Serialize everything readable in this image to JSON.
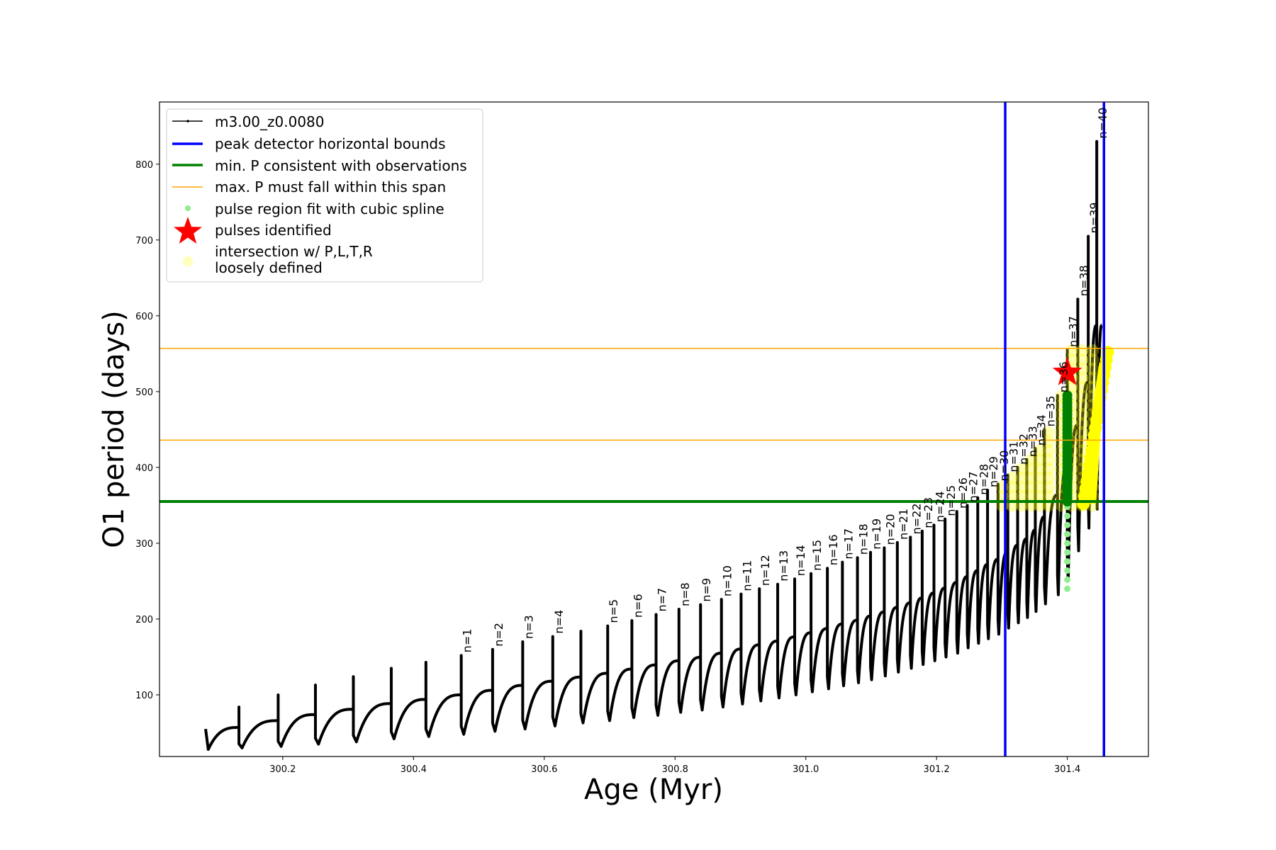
{
  "chart_data": {
    "type": "line",
    "title": "",
    "xlabel": "Age (Myr)",
    "ylabel": "O1 period (days)",
    "xlim": [
      300.0115,
      301.524
    ],
    "ylim": [
      18.7,
      882
    ],
    "xticks": [
      300.2,
      300.4,
      300.6,
      300.8,
      301.0,
      301.2,
      301.4
    ],
    "xtick_labels": [
      "300.2",
      "300.4",
      "300.6",
      "300.8",
      "301.0",
      "301.2",
      "301.4"
    ],
    "yticks": [
      100,
      200,
      300,
      400,
      500,
      600,
      700,
      800
    ],
    "ytick_labels": [
      "100",
      "200",
      "300",
      "400",
      "500",
      "600",
      "700",
      "800"
    ],
    "grid": false,
    "legend_position": "top-left",
    "series_name": "m3.00_z0.0080",
    "start": {
      "age": 300.082,
      "P": 55,
      "trough": 28
    },
    "unlabeled_pulses": [
      {
        "age": 300.133,
        "peak": 84,
        "trough": 30
      },
      {
        "age": 300.193,
        "peak": 100,
        "trough": 32
      },
      {
        "age": 300.25,
        "peak": 113,
        "trough": 35
      },
      {
        "age": 300.308,
        "peak": 124,
        "trough": 38
      },
      {
        "age": 300.366,
        "peak": 135,
        "trough": 42
      },
      {
        "age": 300.419,
        "peak": 143,
        "trough": 45
      },
      {
        "age": 300.656,
        "peak": 184,
        "trough": 63
      }
    ],
    "pulses": [
      {
        "label": "n=1",
        "age": 300.473,
        "peak": 152,
        "trough": 48
      },
      {
        "label": "n=2",
        "age": 300.521,
        "peak": 160,
        "trough": 52
      },
      {
        "label": "n=3",
        "age": 300.567,
        "peak": 170,
        "trough": 55
      },
      {
        "label": "n=4",
        "age": 300.613,
        "peak": 177,
        "trough": 59
      },
      {
        "label": "n=5",
        "age": 300.697,
        "peak": 191,
        "trough": 66
      },
      {
        "label": "n=6",
        "age": 300.734,
        "peak": 198,
        "trough": 70
      },
      {
        "label": "n=7",
        "age": 300.771,
        "peak": 206,
        "trough": 73
      },
      {
        "label": "n=8",
        "age": 300.806,
        "peak": 213,
        "trough": 77
      },
      {
        "label": "n=9",
        "age": 300.839,
        "peak": 219,
        "trough": 80
      },
      {
        "label": "n=10",
        "age": 300.871,
        "peak": 226,
        "trough": 84
      },
      {
        "label": "n=11",
        "age": 300.901,
        "peak": 233,
        "trough": 88
      },
      {
        "label": "n=12",
        "age": 300.929,
        "peak": 240,
        "trough": 92
      },
      {
        "label": "n=13",
        "age": 300.957,
        "peak": 246,
        "trough": 96
      },
      {
        "label": "n=14",
        "age": 300.983,
        "peak": 253,
        "trough": 100
      },
      {
        "label": "n=15",
        "age": 301.008,
        "peak": 260,
        "trough": 104
      },
      {
        "label": "n=16",
        "age": 301.033,
        "peak": 267,
        "trough": 108
      },
      {
        "label": "n=17",
        "age": 301.056,
        "peak": 275,
        "trough": 112
      },
      {
        "label": "n=18",
        "age": 301.079,
        "peak": 281,
        "trough": 116
      },
      {
        "label": "n=19",
        "age": 301.099,
        "peak": 288,
        "trough": 120
      },
      {
        "label": "n=20",
        "age": 301.12,
        "peak": 294,
        "trough": 125
      },
      {
        "label": "n=21",
        "age": 301.14,
        "peak": 301,
        "trough": 130
      },
      {
        "label": "n=22",
        "age": 301.16,
        "peak": 308,
        "trough": 135
      },
      {
        "label": "n=23",
        "age": 301.178,
        "peak": 316,
        "trough": 140
      },
      {
        "label": "n=24",
        "age": 301.196,
        "peak": 324,
        "trough": 145
      },
      {
        "label": "n=25",
        "age": 301.213,
        "peak": 332,
        "trough": 150
      },
      {
        "label": "n=26",
        "age": 301.231,
        "peak": 342,
        "trough": 155
      },
      {
        "label": "n=27",
        "age": 301.247,
        "peak": 350,
        "trough": 162
      },
      {
        "label": "n=28",
        "age": 301.263,
        "peak": 360,
        "trough": 168
      },
      {
        "label": "n=29",
        "age": 301.278,
        "peak": 370,
        "trough": 174
      },
      {
        "label": "n=30",
        "age": 301.294,
        "peak": 378,
        "trough": 180
      },
      {
        "label": "n=31",
        "age": 301.309,
        "peak": 390,
        "trough": 188
      },
      {
        "label": "n=32",
        "age": 301.324,
        "peak": 400,
        "trough": 195
      },
      {
        "label": "n=33",
        "age": 301.338,
        "peak": 410,
        "trough": 202
      },
      {
        "label": "n=34",
        "age": 301.351,
        "peak": 425,
        "trough": 210
      },
      {
        "label": "n=35",
        "age": 301.365,
        "peak": 450,
        "trough": 220
      },
      {
        "label": "n=36",
        "age": 301.385,
        "peak": 495,
        "trough": 232
      },
      {
        "label": "n=37",
        "age": 301.4,
        "peak": 555,
        "trough": 250
      },
      {
        "label": "n=38",
        "age": 301.416,
        "peak": 622,
        "trough": 290
      },
      {
        "label": "n=39",
        "age": 301.432,
        "peak": 705,
        "trough": 320
      },
      {
        "label": "n=40",
        "age": 301.445,
        "peak": 830,
        "trough": 345
      }
    ],
    "peak_detector_bounds": [
      301.305,
      301.456
    ],
    "min_P_observations": 355,
    "max_P_span": [
      436,
      557
    ],
    "pulse_identified": {
      "age": 301.4,
      "P": 525
    },
    "spline_fit_region": {
      "age": 301.4,
      "P_range": [
        240,
        495
      ],
      "dark_range": [
        355,
        495
      ]
    },
    "intersection_region": {
      "age_range": [
        301.3,
        301.458
      ],
      "P_range": [
        350,
        557
      ]
    },
    "colors": {
      "series": "#000000",
      "bounds": "#0000ff",
      "minP": "#008000",
      "maxP": "#ffa500",
      "spline": "#90ee90",
      "star": "#ff0000",
      "intersection": "#ffff00"
    },
    "legend": [
      "m3.00_z0.0080",
      "peak detector horizontal bounds",
      "min. P consistent with observations",
      "max. P must fall within this span",
      "pulse region fit with cubic spline",
      "pulses identified",
      "intersection w/ P,L,T,R",
      "loosely defined"
    ]
  }
}
